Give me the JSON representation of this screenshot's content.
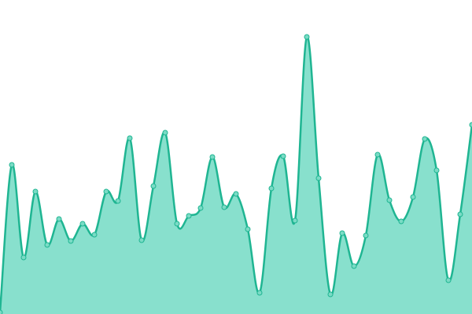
{
  "chart_data": {
    "type": "area",
    "values": [
      2,
      190,
      72,
      156,
      88,
      121,
      93,
      115,
      101,
      156,
      144,
      224,
      94,
      163,
      231,
      115,
      125,
      135,
      200,
      136,
      153,
      108,
      27,
      160,
      201,
      119,
      353,
      173,
      25,
      103,
      61,
      100,
      203,
      145,
      118,
      149,
      223,
      183,
      43,
      127,
      241
    ],
    "ylim": [
      0,
      400
    ],
    "color": "#1fb592",
    "area_color": "#88e0cd",
    "point_color": "#7adbc5"
  }
}
